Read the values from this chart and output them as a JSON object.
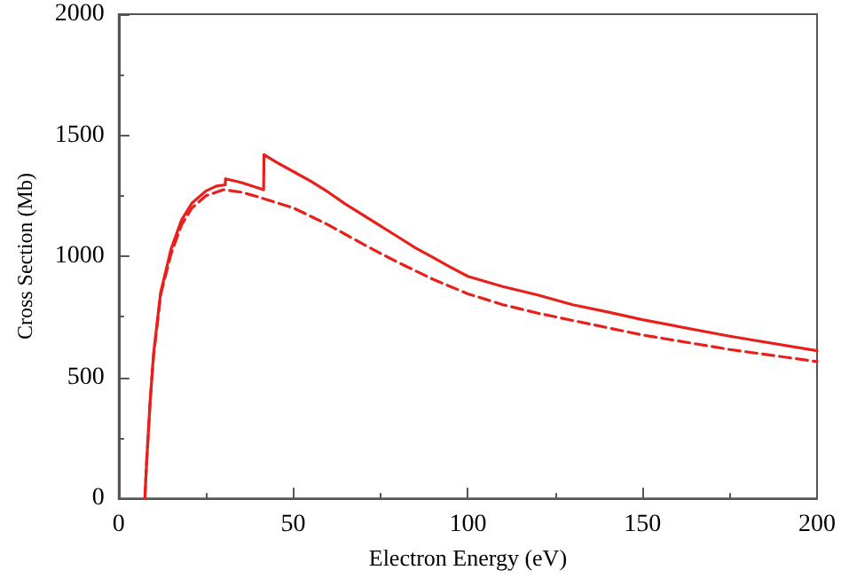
{
  "chart_data": {
    "type": "line",
    "xlabel": "Electron Energy (eV)",
    "ylabel": "Cross Section (Mb)",
    "xlim": [
      0,
      200
    ],
    "xticks": [
      0,
      50,
      100,
      150,
      200
    ],
    "ylim": [
      0,
      2000
    ],
    "yticks": [
      0,
      500,
      1000,
      1500,
      2000
    ],
    "grid": false,
    "marker": "none",
    "series": [
      {
        "color": "#e8201c",
        "line_style": "solid",
        "x": [
          7.5,
          8,
          9,
          10,
          12,
          15,
          18,
          21,
          25,
          28,
          30.5,
          30.6,
          35,
          41.5,
          41.6,
          45,
          50,
          55,
          60,
          65,
          70,
          75,
          80,
          85,
          90,
          95,
          100,
          110,
          120,
          130,
          140,
          150,
          175,
          200
        ],
        "values": [
          0,
          150,
          400,
          600,
          850,
          1030,
          1150,
          1220,
          1270,
          1290,
          1295,
          1320,
          1305,
          1275,
          1420,
          1390,
          1350,
          1310,
          1265,
          1215,
          1170,
          1125,
          1080,
          1035,
          995,
          955,
          917,
          875,
          840,
          800,
          770,
          738,
          670,
          610
        ]
      },
      {
        "color": "#e8201c",
        "line_style": "dashed",
        "x": [
          7.5,
          8,
          9,
          10,
          12,
          15,
          18,
          21,
          25,
          30,
          35,
          40,
          50,
          55,
          60,
          65,
          70,
          75,
          80,
          85,
          90,
          95,
          100,
          110,
          120,
          130,
          140,
          150,
          175,
          200
        ],
        "values": [
          0,
          150,
          400,
          590,
          840,
          1010,
          1130,
          1200,
          1250,
          1275,
          1265,
          1245,
          1200,
          1165,
          1130,
          1090,
          1050,
          1012,
          975,
          940,
          905,
          875,
          845,
          800,
          765,
          735,
          705,
          675,
          615,
          565
        ]
      }
    ]
  }
}
